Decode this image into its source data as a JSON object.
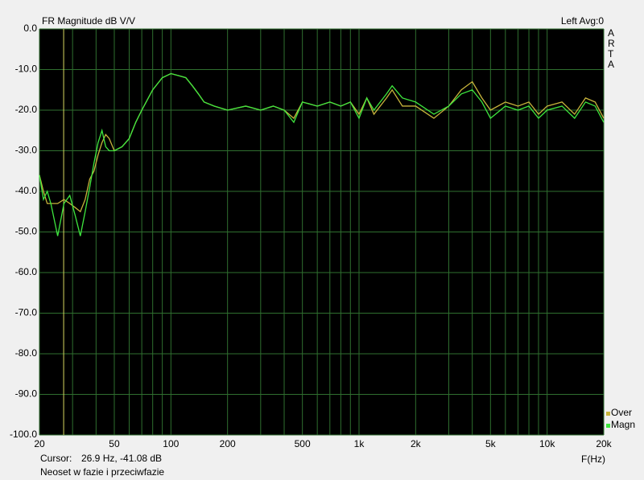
{
  "chart_data": {
    "type": "line",
    "title": "FR Magnitude dB V/V",
    "channel": "Left  Avg:0",
    "brand": [
      "A",
      "R",
      "T",
      "A"
    ],
    "xlabel": "F(Hz)",
    "caption": "Neoset w fazie i przeciwfazie",
    "cursor": {
      "label": "Cursor:",
      "text": "26.9 Hz, -41.08 dB",
      "x": 26.9,
      "color": "#d8d860"
    },
    "log_x": true,
    "grid": true,
    "xlim": [
      20,
      20000
    ],
    "ylim": [
      -100,
      0
    ],
    "xticks": [
      20,
      50,
      100,
      200,
      500,
      {
        "value": 1000,
        "label": "1k"
      },
      {
        "value": 2000,
        "label": "2k"
      },
      {
        "value": 5000,
        "label": "5k"
      },
      {
        "value": 10000,
        "label": "10k"
      },
      {
        "value": 20000,
        "label": "20k"
      }
    ],
    "xminor": [
      30,
      40,
      60,
      70,
      80,
      90,
      300,
      400,
      600,
      700,
      800,
      900,
      3000,
      4000,
      6000,
      7000,
      8000,
      9000
    ],
    "yticks": [
      {
        "value": 0,
        "label": "0.0"
      },
      {
        "value": -10,
        "label": "-10.0"
      },
      {
        "value": -20,
        "label": "-20.0"
      },
      {
        "value": -30,
        "label": "-30.0"
      },
      {
        "value": -40,
        "label": "-40.0"
      },
      {
        "value": -50,
        "label": "-50.0"
      },
      {
        "value": -60,
        "label": "-60.0"
      },
      {
        "value": -70,
        "label": "-70.0"
      },
      {
        "value": -80,
        "label": "-80.0"
      },
      {
        "value": -90,
        "label": "-90.0"
      },
      {
        "value": -100,
        "label": "-100.0"
      }
    ],
    "x": [
      20,
      21,
      22,
      23,
      25,
      27,
      29,
      31,
      33,
      35,
      37,
      39,
      41,
      43,
      45,
      47,
      50,
      55,
      60,
      65,
      70,
      80,
      90,
      100,
      110,
      120,
      130,
      140,
      150,
      170,
      200,
      250,
      300,
      350,
      400,
      450,
      500,
      600,
      700,
      800,
      900,
      1000,
      1100,
      1200,
      1400,
      1500,
      1700,
      2000,
      2500,
      3000,
      3500,
      4000,
      4500,
      5000,
      6000,
      7000,
      8000,
      9000,
      10000,
      12000,
      14000,
      16000,
      18000,
      20000
    ],
    "series": [
      {
        "name": "Over",
        "color": "#c8b43c",
        "values": [
          -36,
          -40,
          -43,
          -43,
          -43,
          -42,
          -43,
          -44,
          -45,
          -42,
          -37,
          -35,
          -31,
          -28,
          -26,
          -27,
          -30,
          -29,
          -27,
          -23,
          -20,
          -15,
          -12,
          -11,
          -11.5,
          -12,
          -14,
          -16,
          -18,
          -19,
          -20,
          -19,
          -20,
          -19,
          -20,
          -22,
          -18,
          -19,
          -18,
          -19,
          -18,
          -21,
          -17,
          -21,
          -17,
          -15,
          -19,
          -19,
          -22,
          -19,
          -15,
          -13,
          -17,
          -20,
          -18,
          -19,
          -18,
          -21,
          -19,
          -18,
          -21,
          -17,
          -18,
          -22
        ]
      },
      {
        "name": "Magn",
        "color": "#3ee63e",
        "values": [
          -36,
          -42,
          -40,
          -43,
          -51,
          -43,
          -41,
          -46,
          -51,
          -45,
          -39,
          -33,
          -28,
          -25,
          -29,
          -30,
          -30,
          -29,
          -27,
          -23,
          -20,
          -15,
          -12,
          -11,
          -11.5,
          -12,
          -14,
          -16,
          -18,
          -19,
          -20,
          -19,
          -20,
          -19,
          -20,
          -23,
          -18,
          -19,
          -18,
          -19,
          -18,
          -22,
          -17,
          -20,
          -16,
          -14,
          -17,
          -18,
          -21,
          -19,
          -16,
          -15,
          -18,
          -22,
          -19,
          -20,
          -19,
          -22,
          -20,
          -19,
          -22,
          -18,
          -19,
          -23
        ]
      }
    ]
  }
}
